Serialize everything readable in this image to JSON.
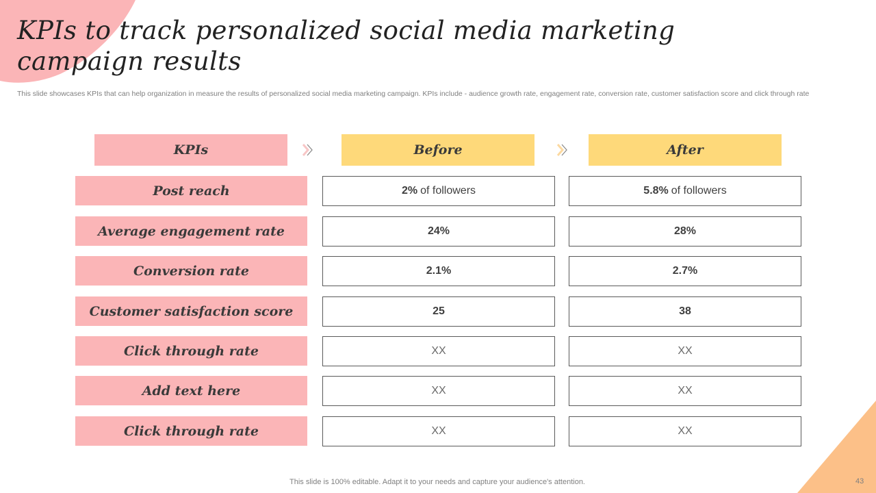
{
  "slide": {
    "title": "KPIs to track personalized social media marketing campaign results",
    "subtitle": "This slide showcases KPIs that can help organization in measure the results of personalized social media marketing campaign. KPIs include - audience growth rate, engagement rate, conversion rate, customer satisfaction score and click through rate",
    "footer": "This slide is 100% editable. Adapt it to your needs and capture your audience's attention.",
    "page_number": "43"
  },
  "table": {
    "headers": {
      "kpi": "KPIs",
      "before": "Before",
      "after": "After"
    },
    "rows": [
      {
        "kpi": "Post reach",
        "before": "2%",
        "before_suffix": "of followers",
        "after": "5.8%",
        "after_suffix": "of followers"
      },
      {
        "kpi": "Average engagement rate",
        "before": "24%",
        "after": "28%"
      },
      {
        "kpi": "Conversion rate",
        "before": "2.1%",
        "after": "2.7%"
      },
      {
        "kpi": "Customer satisfaction score",
        "before": "25",
        "after": "38"
      },
      {
        "kpi": "Click through rate",
        "before": "XX",
        "after": "XX"
      },
      {
        "kpi": "Add text here",
        "before": "XX",
        "after": "XX"
      },
      {
        "kpi": "Click through rate",
        "before": "XX",
        "after": "XX"
      }
    ]
  },
  "icons": {
    "header_arrow": "chevron-right-icon"
  },
  "colors": {
    "kpi_fill": "#fbb5b7",
    "header_fill": "#fed97a",
    "corner_pink": "#fbb5b7",
    "corner_peach": "#fcc088",
    "cell_border": "#595959"
  }
}
